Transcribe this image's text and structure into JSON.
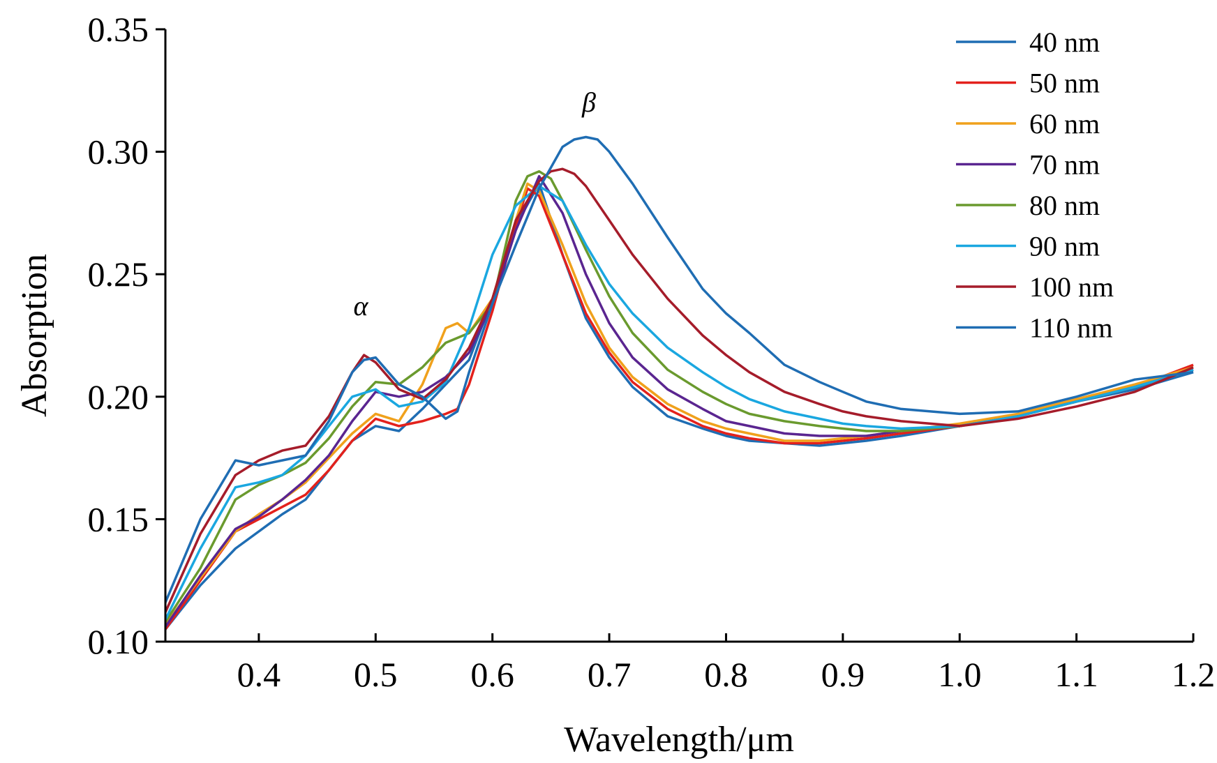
{
  "chart_data": {
    "type": "line",
    "xlabel": "Wavelength/μm",
    "ylabel": "Absorption",
    "xlim": [
      0.32,
      1.2
    ],
    "ylim": [
      0.1,
      0.35
    ],
    "xticks": [
      0.4,
      0.5,
      0.6,
      0.7,
      0.8,
      0.9,
      1.0,
      1.1,
      1.2
    ],
    "yticks": [
      0.1,
      0.15,
      0.2,
      0.25,
      0.3,
      0.35
    ],
    "xtick_labels": [
      "0.4",
      "0.5",
      "0.6",
      "0.7",
      "0.8",
      "0.9",
      "1.0",
      "1.1",
      "1.2"
    ],
    "ytick_labels": [
      "0.10",
      "0.15",
      "0.20",
      "0.25",
      "0.30",
      "0.35"
    ],
    "grid": false,
    "legend_position": "top-right",
    "annotations": [
      {
        "text": "α",
        "x": 0.487,
        "y": 0.235
      },
      {
        "text": "β",
        "x": 0.68,
        "y": 0.318
      }
    ],
    "series": [
      {
        "name": "40 nm",
        "color": "#1f6db3",
        "x": [
          0.32,
          0.35,
          0.38,
          0.4,
          0.42,
          0.44,
          0.46,
          0.48,
          0.5,
          0.52,
          0.54,
          0.56,
          0.58,
          0.6,
          0.62,
          0.64,
          0.66,
          0.68,
          0.7,
          0.72,
          0.75,
          0.78,
          0.8,
          0.82,
          0.85,
          0.88,
          0.9,
          0.92,
          0.95,
          1.0,
          1.05,
          1.1,
          1.15,
          1.2
        ],
        "y": [
          0.105,
          0.123,
          0.138,
          0.145,
          0.152,
          0.158,
          0.17,
          0.182,
          0.188,
          0.186,
          0.195,
          0.205,
          0.215,
          0.24,
          0.27,
          0.287,
          0.258,
          0.232,
          0.216,
          0.204,
          0.192,
          0.187,
          0.184,
          0.182,
          0.181,
          0.18,
          0.181,
          0.182,
          0.184,
          0.188,
          0.192,
          0.198,
          0.203,
          0.21
        ]
      },
      {
        "name": "50 nm",
        "color": "#e3211c",
        "x": [
          0.32,
          0.35,
          0.38,
          0.4,
          0.42,
          0.44,
          0.46,
          0.48,
          0.5,
          0.52,
          0.54,
          0.56,
          0.57,
          0.58,
          0.6,
          0.62,
          0.63,
          0.64,
          0.66,
          0.68,
          0.7,
          0.72,
          0.75,
          0.78,
          0.8,
          0.82,
          0.85,
          0.88,
          0.9,
          0.92,
          0.95,
          1.0,
          1.05,
          1.1,
          1.15,
          1.2
        ],
        "y": [
          0.105,
          0.125,
          0.145,
          0.15,
          0.155,
          0.16,
          0.17,
          0.182,
          0.191,
          0.188,
          0.19,
          0.193,
          0.195,
          0.205,
          0.235,
          0.27,
          0.285,
          0.282,
          0.258,
          0.234,
          0.218,
          0.206,
          0.195,
          0.188,
          0.185,
          0.183,
          0.181,
          0.181,
          0.182,
          0.183,
          0.185,
          0.188,
          0.192,
          0.198,
          0.204,
          0.213
        ]
      },
      {
        "name": "60 nm",
        "color": "#f0a11c",
        "x": [
          0.32,
          0.35,
          0.38,
          0.4,
          0.42,
          0.44,
          0.46,
          0.48,
          0.5,
          0.52,
          0.54,
          0.56,
          0.57,
          0.58,
          0.6,
          0.62,
          0.63,
          0.64,
          0.66,
          0.68,
          0.7,
          0.72,
          0.75,
          0.78,
          0.8,
          0.82,
          0.85,
          0.88,
          0.9,
          0.92,
          0.95,
          1.0,
          1.05,
          1.1,
          1.15,
          1.2
        ],
        "y": [
          0.107,
          0.126,
          0.145,
          0.152,
          0.158,
          0.165,
          0.175,
          0.185,
          0.193,
          0.19,
          0.205,
          0.228,
          0.23,
          0.226,
          0.24,
          0.272,
          0.287,
          0.284,
          0.262,
          0.238,
          0.22,
          0.208,
          0.197,
          0.19,
          0.187,
          0.185,
          0.182,
          0.182,
          0.183,
          0.184,
          0.186,
          0.189,
          0.193,
          0.199,
          0.205,
          0.212
        ]
      },
      {
        "name": "70 nm",
        "color": "#5a2590",
        "x": [
          0.32,
          0.35,
          0.38,
          0.4,
          0.42,
          0.44,
          0.46,
          0.48,
          0.5,
          0.52,
          0.54,
          0.56,
          0.58,
          0.6,
          0.62,
          0.64,
          0.66,
          0.68,
          0.7,
          0.72,
          0.75,
          0.78,
          0.8,
          0.82,
          0.85,
          0.88,
          0.9,
          0.92,
          0.95,
          1.0,
          1.05,
          1.1,
          1.15,
          1.2
        ],
        "y": [
          0.106,
          0.127,
          0.146,
          0.151,
          0.158,
          0.166,
          0.176,
          0.19,
          0.202,
          0.2,
          0.202,
          0.208,
          0.218,
          0.238,
          0.268,
          0.29,
          0.275,
          0.25,
          0.23,
          0.216,
          0.203,
          0.195,
          0.19,
          0.188,
          0.185,
          0.184,
          0.184,
          0.184,
          0.186,
          0.188,
          0.192,
          0.198,
          0.204,
          0.211
        ]
      },
      {
        "name": "80 nm",
        "color": "#6a9a2e",
        "x": [
          0.32,
          0.35,
          0.38,
          0.4,
          0.42,
          0.44,
          0.46,
          0.48,
          0.5,
          0.52,
          0.54,
          0.56,
          0.58,
          0.6,
          0.62,
          0.63,
          0.64,
          0.65,
          0.66,
          0.68,
          0.7,
          0.72,
          0.75,
          0.78,
          0.8,
          0.82,
          0.85,
          0.88,
          0.9,
          0.92,
          0.95,
          1.0,
          1.05,
          1.1,
          1.15,
          1.2
        ],
        "y": [
          0.108,
          0.13,
          0.158,
          0.164,
          0.168,
          0.173,
          0.183,
          0.196,
          0.206,
          0.205,
          0.212,
          0.222,
          0.226,
          0.238,
          0.28,
          0.29,
          0.292,
          0.289,
          0.28,
          0.26,
          0.241,
          0.226,
          0.211,
          0.202,
          0.197,
          0.193,
          0.19,
          0.188,
          0.187,
          0.186,
          0.186,
          0.188,
          0.192,
          0.198,
          0.204,
          0.211
        ]
      },
      {
        "name": "90 nm",
        "color": "#1aa7e0",
        "x": [
          0.32,
          0.35,
          0.38,
          0.4,
          0.42,
          0.44,
          0.46,
          0.48,
          0.5,
          0.52,
          0.54,
          0.56,
          0.58,
          0.6,
          0.62,
          0.64,
          0.66,
          0.68,
          0.7,
          0.72,
          0.75,
          0.78,
          0.8,
          0.82,
          0.85,
          0.88,
          0.9,
          0.92,
          0.95,
          1.0,
          1.05,
          1.1,
          1.15,
          1.2
        ],
        "y": [
          0.109,
          0.138,
          0.163,
          0.165,
          0.168,
          0.176,
          0.188,
          0.2,
          0.203,
          0.196,
          0.198,
          0.206,
          0.228,
          0.258,
          0.278,
          0.286,
          0.28,
          0.262,
          0.246,
          0.234,
          0.22,
          0.21,
          0.204,
          0.199,
          0.194,
          0.191,
          0.189,
          0.188,
          0.187,
          0.188,
          0.192,
          0.198,
          0.204,
          0.211
        ]
      },
      {
        "name": "100 nm",
        "color": "#a51c2a",
        "x": [
          0.32,
          0.35,
          0.38,
          0.4,
          0.42,
          0.44,
          0.46,
          0.48,
          0.49,
          0.5,
          0.52,
          0.54,
          0.56,
          0.58,
          0.6,
          0.62,
          0.64,
          0.65,
          0.66,
          0.67,
          0.68,
          0.7,
          0.72,
          0.75,
          0.78,
          0.8,
          0.82,
          0.85,
          0.88,
          0.9,
          0.92,
          0.95,
          1.0,
          1.05,
          1.1,
          1.15,
          1.2
        ],
        "y": [
          0.112,
          0.144,
          0.168,
          0.174,
          0.178,
          0.18,
          0.192,
          0.21,
          0.217,
          0.214,
          0.203,
          0.199,
          0.207,
          0.22,
          0.24,
          0.272,
          0.288,
          0.292,
          0.293,
          0.291,
          0.286,
          0.272,
          0.258,
          0.24,
          0.225,
          0.217,
          0.21,
          0.202,
          0.197,
          0.194,
          0.192,
          0.19,
          0.188,
          0.191,
          0.196,
          0.202,
          0.212
        ]
      },
      {
        "name": "110 nm",
        "color": "#1f6db3",
        "x": [
          0.32,
          0.35,
          0.38,
          0.4,
          0.42,
          0.44,
          0.46,
          0.48,
          0.49,
          0.5,
          0.52,
          0.54,
          0.56,
          0.57,
          0.58,
          0.6,
          0.62,
          0.64,
          0.66,
          0.67,
          0.68,
          0.69,
          0.7,
          0.72,
          0.75,
          0.78,
          0.8,
          0.82,
          0.85,
          0.88,
          0.9,
          0.92,
          0.95,
          1.0,
          1.05,
          1.1,
          1.15,
          1.2
        ],
        "y": [
          0.116,
          0.15,
          0.174,
          0.172,
          0.174,
          0.176,
          0.19,
          0.21,
          0.215,
          0.216,
          0.205,
          0.2,
          0.191,
          0.194,
          0.21,
          0.238,
          0.262,
          0.285,
          0.302,
          0.305,
          0.306,
          0.305,
          0.3,
          0.287,
          0.265,
          0.244,
          0.234,
          0.226,
          0.213,
          0.206,
          0.202,
          0.198,
          0.195,
          0.193,
          0.194,
          0.2,
          0.207,
          0.21
        ]
      }
    ]
  }
}
